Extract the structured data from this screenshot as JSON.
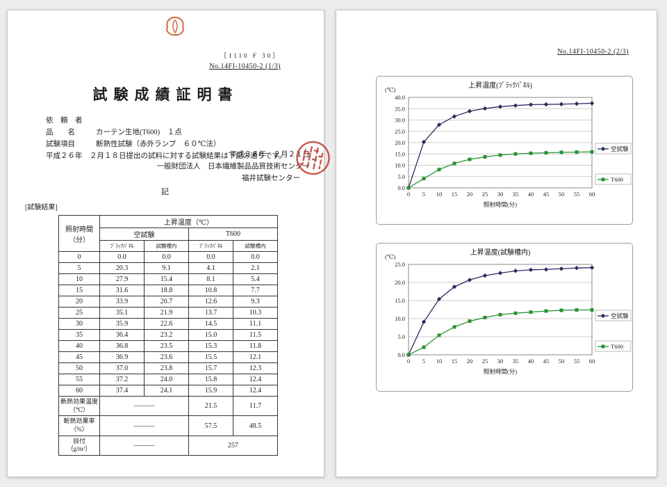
{
  "page1": {
    "form_code": "［1110 F 30］",
    "doc_no": "No.14FI-10450-2 (1/3)",
    "title": "試験成績証明書",
    "client_label": "依　頼　者",
    "client_value": "",
    "item_label": "品　　名",
    "item_value": "カーテン生地(T600)　１点",
    "test_label": "試験項目",
    "test_value": "断熱性試験（赤外ランプ　６０℃法）",
    "statement": "平成２６年　２月１８日提出の試料に対する試験結果は下記の通りです。",
    "date_line": "平成２６年　２月２１日",
    "org_line": "一般財団法人　日本繊維製品品質技術センター",
    "center_line": "福井試験センター",
    "ki_label": "記",
    "results_label": "[試験結果]",
    "table": {
      "time_header": "照射時間\n（分）",
      "group_header": "上昇温度（℃）",
      "groups": [
        "空試験",
        "T600"
      ],
      "subcols": [
        "ﾌﾞﾗｯｸﾊﾟﾈﾙ",
        "試験槽内",
        "ﾌﾞﾗｯｸﾊﾟﾈﾙ",
        "試験槽内"
      ],
      "rows": [
        {
          "time": "0",
          "values": [
            "0.0",
            "0.0",
            "0.0",
            "0.0"
          ]
        },
        {
          "time": "5",
          "values": [
            "20.3",
            "9.1",
            "4.1",
            "2.1"
          ]
        },
        {
          "time": "10",
          "values": [
            "27.9",
            "15.4",
            "8.1",
            "5.4"
          ]
        },
        {
          "time": "15",
          "values": [
            "31.6",
            "18.8",
            "10.8",
            "7.7"
          ]
        },
        {
          "time": "20",
          "values": [
            "33.9",
            "20.7",
            "12.6",
            "9.3"
          ]
        },
        {
          "time": "25",
          "values": [
            "35.1",
            "21.9",
            "13.7",
            "10.3"
          ]
        },
        {
          "time": "30",
          "values": [
            "35.9",
            "22.6",
            "14.5",
            "11.1"
          ]
        },
        {
          "time": "35",
          "values": [
            "36.4",
            "23.2",
            "15.0",
            "11.5"
          ]
        },
        {
          "time": "40",
          "values": [
            "36.8",
            "23.5",
            "15.3",
            "11.8"
          ]
        },
        {
          "time": "45",
          "values": [
            "36.9",
            "23.6",
            "15.5",
            "12.1"
          ]
        },
        {
          "time": "50",
          "values": [
            "37.0",
            "23.8",
            "15.7",
            "12.3"
          ]
        },
        {
          "time": "55",
          "values": [
            "37.2",
            "24.0",
            "15.8",
            "12.4"
          ]
        },
        {
          "time": "60",
          "values": [
            "37.4",
            "24.1",
            "15.9",
            "12.4"
          ]
        }
      ],
      "special_rows": [
        {
          "label": "断熱効果温度\n（℃）",
          "cells": [
            {
              "text": "―――",
              "span": 2
            },
            {
              "text": "21.5",
              "span": 1
            },
            {
              "text": "11.7",
              "span": 1
            }
          ]
        },
        {
          "label": "断熱効果率\n（%）",
          "cells": [
            {
              "text": "―――",
              "span": 2
            },
            {
              "text": "57.5",
              "span": 1
            },
            {
              "text": "48.5",
              "span": 1
            }
          ]
        },
        {
          "label": "目付\n（g/m²）",
          "cells": [
            {
              "text": "―――",
              "span": 2
            },
            {
              "text": "257",
              "span": 2
            }
          ]
        }
      ]
    }
  },
  "page2": {
    "doc_no": "No.14FI-10450-2 (2/3)"
  },
  "chart_data": [
    {
      "type": "line",
      "title": "上昇温度(ﾌﾞﾗｯｸﾊﾟﾈﾙ)",
      "xlabel": "照射時間(分)",
      "ylabel": "(℃)",
      "x": [
        0,
        5,
        10,
        15,
        20,
        25,
        30,
        35,
        40,
        45,
        50,
        55,
        60
      ],
      "ylim": [
        0,
        40
      ],
      "ytick": 5,
      "grid": true,
      "legend_position": "right",
      "series": [
        {
          "name": "空試験",
          "color": "#2b2b5e",
          "marker": "diamond",
          "values": [
            0.0,
            20.3,
            27.9,
            31.6,
            33.9,
            35.1,
            35.9,
            36.4,
            36.8,
            36.9,
            37.0,
            37.2,
            37.4
          ]
        },
        {
          "name": "T600",
          "color": "#2a9235",
          "marker": "square",
          "values": [
            0.0,
            4.1,
            8.1,
            10.8,
            12.6,
            13.7,
            14.5,
            15.0,
            15.3,
            15.5,
            15.7,
            15.8,
            15.9
          ]
        }
      ]
    },
    {
      "type": "line",
      "title": "上昇温度(試験槽内)",
      "xlabel": "照射時間(分)",
      "ylabel": "(℃)",
      "x": [
        0,
        5,
        10,
        15,
        20,
        25,
        30,
        35,
        40,
        45,
        50,
        55,
        60
      ],
      "ylim": [
        0,
        25
      ],
      "ytick": 5,
      "grid": true,
      "legend_position": "right",
      "series": [
        {
          "name": "空試験",
          "color": "#2b2b5e",
          "marker": "diamond",
          "values": [
            0.0,
            9.1,
            15.4,
            18.8,
            20.7,
            21.9,
            22.6,
            23.2,
            23.5,
            23.6,
            23.8,
            24.0,
            24.1
          ]
        },
        {
          "name": "T600",
          "color": "#2a9235",
          "marker": "square",
          "values": [
            0.0,
            2.1,
            5.4,
            7.7,
            9.3,
            10.3,
            11.1,
            11.5,
            11.8,
            12.1,
            12.3,
            12.4,
            12.4
          ]
        }
      ]
    }
  ]
}
